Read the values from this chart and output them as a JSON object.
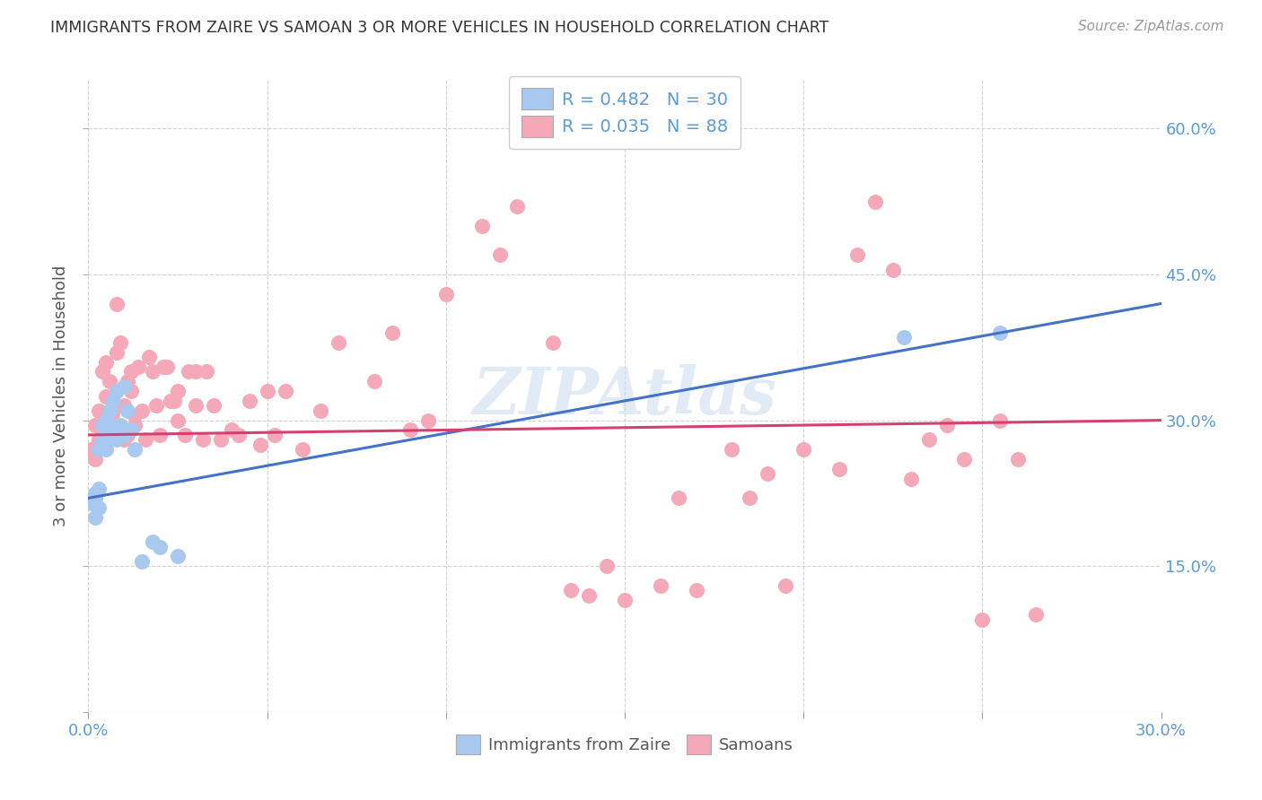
{
  "title": "IMMIGRANTS FROM ZAIRE VS SAMOAN 3 OR MORE VEHICLES IN HOUSEHOLD CORRELATION CHART",
  "source": "Source: ZipAtlas.com",
  "ylabel": "3 or more Vehicles in Household",
  "xlim": [
    0.0,
    0.3
  ],
  "ylim": [
    0.0,
    0.65
  ],
  "zaire_color": "#A8C8F0",
  "samoan_color": "#F4A8B8",
  "zaire_line_color": "#4472C4",
  "samoan_line_color": "#D44070",
  "legend_r1": "R = 0.482",
  "legend_n1": "N = 30",
  "legend_r2": "R = 0.035",
  "legend_n2": "N = 88",
  "background_color": "#FFFFFF",
  "grid_color": "#CCCCCC",
  "zaire_line_y0": 0.22,
  "zaire_line_y1": 0.42,
  "samoan_line_y0": 0.285,
  "samoan_line_y1": 0.3,
  "zaire_x": [
    0.001,
    0.002,
    0.002,
    0.002,
    0.003,
    0.003,
    0.003,
    0.004,
    0.004,
    0.005,
    0.005,
    0.006,
    0.006,
    0.006,
    0.007,
    0.007,
    0.008,
    0.008,
    0.009,
    0.01,
    0.01,
    0.011,
    0.012,
    0.013,
    0.015,
    0.018,
    0.02,
    0.025,
    0.228,
    0.255
  ],
  "zaire_y": [
    0.215,
    0.2,
    0.22,
    0.225,
    0.21,
    0.23,
    0.27,
    0.28,
    0.295,
    0.27,
    0.3,
    0.31,
    0.295,
    0.285,
    0.32,
    0.29,
    0.33,
    0.28,
    0.295,
    0.335,
    0.285,
    0.31,
    0.29,
    0.27,
    0.155,
    0.175,
    0.17,
    0.16,
    0.385,
    0.39
  ],
  "samoan_x": [
    0.001,
    0.002,
    0.002,
    0.003,
    0.003,
    0.004,
    0.004,
    0.005,
    0.005,
    0.006,
    0.006,
    0.007,
    0.007,
    0.008,
    0.008,
    0.009,
    0.01,
    0.01,
    0.011,
    0.011,
    0.012,
    0.012,
    0.013,
    0.013,
    0.014,
    0.015,
    0.016,
    0.017,
    0.018,
    0.019,
    0.02,
    0.021,
    0.022,
    0.023,
    0.024,
    0.025,
    0.025,
    0.027,
    0.028,
    0.03,
    0.03,
    0.032,
    0.033,
    0.035,
    0.037,
    0.04,
    0.042,
    0.045,
    0.048,
    0.05,
    0.052,
    0.055,
    0.06,
    0.065,
    0.07,
    0.08,
    0.085,
    0.09,
    0.095,
    0.1,
    0.11,
    0.115,
    0.12,
    0.13,
    0.135,
    0.14,
    0.145,
    0.15,
    0.16,
    0.165,
    0.17,
    0.18,
    0.185,
    0.19,
    0.195,
    0.2,
    0.21,
    0.215,
    0.22,
    0.225,
    0.23,
    0.235,
    0.24,
    0.245,
    0.25,
    0.255,
    0.26,
    0.265
  ],
  "samoan_y": [
    0.27,
    0.26,
    0.295,
    0.31,
    0.28,
    0.35,
    0.29,
    0.325,
    0.36,
    0.28,
    0.34,
    0.3,
    0.31,
    0.42,
    0.37,
    0.38,
    0.315,
    0.28,
    0.34,
    0.285,
    0.33,
    0.35,
    0.305,
    0.295,
    0.355,
    0.31,
    0.28,
    0.365,
    0.35,
    0.315,
    0.285,
    0.355,
    0.355,
    0.32,
    0.32,
    0.33,
    0.3,
    0.285,
    0.35,
    0.35,
    0.315,
    0.28,
    0.35,
    0.315,
    0.28,
    0.29,
    0.285,
    0.32,
    0.275,
    0.33,
    0.285,
    0.33,
    0.27,
    0.31,
    0.38,
    0.34,
    0.39,
    0.29,
    0.3,
    0.43,
    0.5,
    0.47,
    0.52,
    0.38,
    0.125,
    0.12,
    0.15,
    0.115,
    0.13,
    0.22,
    0.125,
    0.27,
    0.22,
    0.245,
    0.13,
    0.27,
    0.25,
    0.47,
    0.525,
    0.455,
    0.24,
    0.28,
    0.295,
    0.26,
    0.095,
    0.3,
    0.26,
    0.1
  ]
}
